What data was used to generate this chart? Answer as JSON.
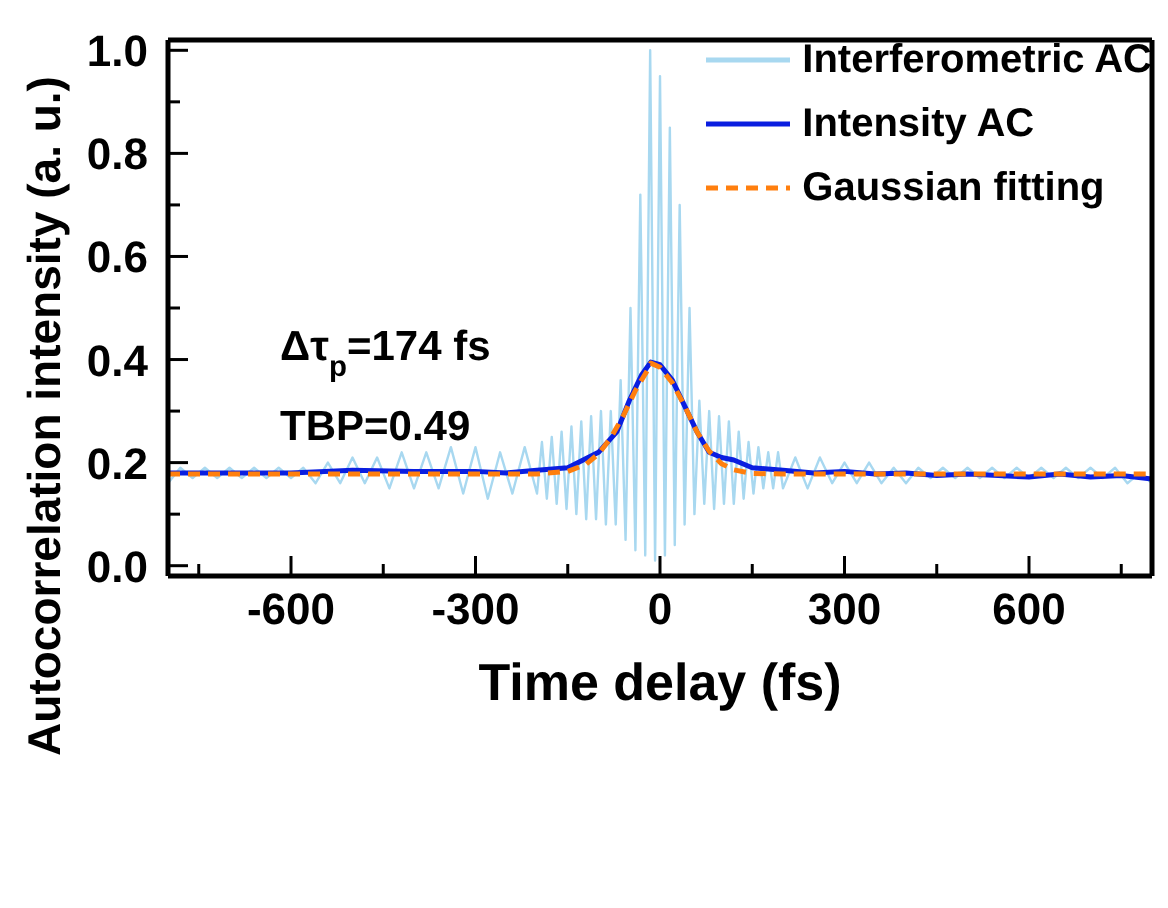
{
  "chart_data": {
    "type": "line",
    "xlabel": "Time delay (fs)",
    "ylabel": "Autocorrelation intensity (a. u.)",
    "xlim": [
      -800,
      800
    ],
    "ylim": [
      -0.02,
      1.02
    ],
    "xticks": [
      {
        "value": -750,
        "label": null
      },
      -600,
      {
        "value": -450,
        "label": null
      },
      -300,
      {
        "value": -150,
        "label": null
      },
      0,
      {
        "value": 150,
        "label": null
      },
      300,
      {
        "value": 450,
        "label": null
      },
      600,
      {
        "value": 750,
        "label": null
      }
    ],
    "yticks": [
      {
        "value": 0,
        "label": "0.0"
      },
      {
        "value": 0.1,
        "label": null
      },
      0.2,
      {
        "value": 0.3,
        "label": null
      },
      0.4,
      {
        "value": 0.5,
        "label": null
      },
      0.6,
      {
        "value": 0.7,
        "label": null
      },
      0.8,
      {
        "value": 0.9,
        "label": null
      },
      {
        "value": 1,
        "label": "1.0"
      }
    ],
    "grid": false,
    "legend": "top right",
    "marker": "none",
    "annotations": [
      "Δτ$_{p}$=174 fs",
      "TBP=0.49"
    ],
    "series": [
      {
        "name": "Interferometric AC",
        "color": "#a8d8f0",
        "line_style": "solid",
        "x": [
          -800,
          -780,
          -760,
          -740,
          -720,
          -700,
          -680,
          -660,
          -640,
          -620,
          -600,
          -580,
          -560,
          -540,
          -520,
          -500,
          -480,
          -460,
          -440,
          -420,
          -400,
          -380,
          -360,
          -340,
          -320,
          -300,
          -280,
          -260,
          -240,
          -220,
          -200,
          -192,
          -184,
          -176,
          -168,
          -160,
          -152,
          -144,
          -136,
          -128,
          -120,
          -112,
          -104,
          -96,
          -88,
          -80,
          -72,
          -64,
          -56,
          -48,
          -40,
          -32,
          -24,
          -16,
          -8,
          0,
          8,
          16,
          24,
          32,
          40,
          48,
          56,
          64,
          72,
          80,
          88,
          96,
          104,
          112,
          120,
          128,
          136,
          144,
          152,
          160,
          168,
          176,
          184,
          192,
          200,
          220,
          240,
          260,
          280,
          300,
          320,
          340,
          360,
          380,
          400,
          420,
          440,
          460,
          480,
          500,
          520,
          540,
          560,
          580,
          600,
          620,
          640,
          660,
          680,
          700,
          720,
          740,
          760,
          780,
          800
        ],
        "values": [
          0.16,
          0.19,
          0.17,
          0.19,
          0.17,
          0.19,
          0.17,
          0.19,
          0.17,
          0.19,
          0.17,
          0.19,
          0.16,
          0.2,
          0.16,
          0.21,
          0.16,
          0.21,
          0.15,
          0.22,
          0.15,
          0.22,
          0.15,
          0.23,
          0.14,
          0.23,
          0.13,
          0.22,
          0.14,
          0.23,
          0.14,
          0.24,
          0.13,
          0.25,
          0.12,
          0.26,
          0.11,
          0.27,
          0.1,
          0.28,
          0.09,
          0.29,
          0.09,
          0.3,
          0.08,
          0.3,
          0.08,
          0.36,
          0.05,
          0.5,
          0.03,
          0.72,
          0.02,
          1.0,
          0.01,
          0.95,
          0.02,
          0.85,
          0.04,
          0.7,
          0.08,
          0.5,
          0.1,
          0.32,
          0.12,
          0.3,
          0.11,
          0.29,
          0.12,
          0.28,
          0.12,
          0.26,
          0.13,
          0.24,
          0.14,
          0.23,
          0.15,
          0.22,
          0.15,
          0.22,
          0.15,
          0.21,
          0.15,
          0.21,
          0.16,
          0.2,
          0.16,
          0.2,
          0.16,
          0.19,
          0.16,
          0.19,
          0.17,
          0.19,
          0.17,
          0.19,
          0.17,
          0.19,
          0.17,
          0.19,
          0.17,
          0.19,
          0.17,
          0.19,
          0.17,
          0.19,
          0.17,
          0.19,
          0.16,
          0.18,
          0.16
        ]
      },
      {
        "name": "Intensity AC",
        "color": "#0a1ee0",
        "line_style": "solid",
        "x": [
          -800,
          -700,
          -600,
          -500,
          -400,
          -300,
          -250,
          -200,
          -150,
          -100,
          -70,
          -50,
          -30,
          -15,
          0,
          20,
          40,
          60,
          80,
          100,
          120,
          150,
          200,
          250,
          300,
          350,
          400,
          450,
          500,
          550,
          600,
          650,
          700,
          750,
          800
        ],
        "values": [
          0.18,
          0.18,
          0.18,
          0.185,
          0.183,
          0.183,
          0.18,
          0.185,
          0.19,
          0.22,
          0.26,
          0.32,
          0.37,
          0.395,
          0.39,
          0.36,
          0.31,
          0.26,
          0.22,
          0.21,
          0.205,
          0.19,
          0.185,
          0.18,
          0.183,
          0.178,
          0.18,
          0.175,
          0.178,
          0.175,
          0.172,
          0.178,
          0.172,
          0.175,
          0.168
        ]
      },
      {
        "name": "Gaussian fitting",
        "color": "#ff7f0e",
        "line_style": "dashed",
        "x": [
          -800,
          -300,
          -200,
          -150,
          -120,
          -100,
          -80,
          -60,
          -40,
          -20,
          -15,
          0,
          20,
          40,
          60,
          80,
          100,
          120,
          150,
          200,
          800
        ],
        "values": [
          0.178,
          0.178,
          0.178,
          0.183,
          0.197,
          0.217,
          0.248,
          0.29,
          0.34,
          0.38,
          0.393,
          0.385,
          0.355,
          0.31,
          0.26,
          0.222,
          0.198,
          0.186,
          0.179,
          0.178,
          0.178
        ]
      }
    ]
  }
}
